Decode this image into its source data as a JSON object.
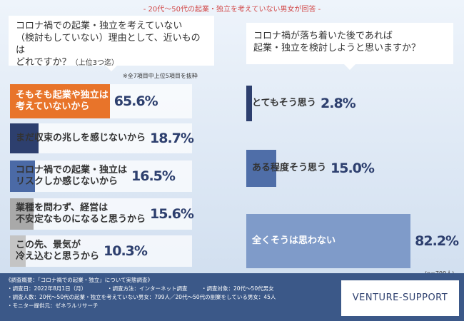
{
  "header": "- 20代～50代の起業・独立を考えていない男女が回答 -",
  "chart_data": [
    {
      "type": "bar",
      "orientation": "horizontal",
      "title": "コロナ禍での起業・独立を考えていない\n（検討もしていない）理由として、近いものは\nどれですか？",
      "title_note": "（上位3つ迄）",
      "note": "※全7項目中上位5項目を抜粋",
      "categories": [
        "そもそも起業や独立は\n考えていないから",
        "まだ収束の兆しを感じないから",
        "コロナ禍での起業・独立は\nリスクしか感じないから",
        "業種を問わず、経営は\n不安定なものになると思うから",
        "この先、景気が\n冷え込むと思うから"
      ],
      "values": [
        65.6,
        18.7,
        16.5,
        15.6,
        10.3
      ],
      "value_labels": [
        "65.6%",
        "18.7%",
        "16.5%",
        "15.6%",
        "10.3%"
      ],
      "colors": [
        "#e8742a",
        "#2d3f6e",
        "#4b6aa6",
        "#a9a9a9",
        "#c4c4c4"
      ]
    },
    {
      "type": "bar",
      "orientation": "horizontal",
      "title": "コロナ禍が落ち着いた後であれば\n起業・独立を検討しようと思いますか？",
      "note": "(n=799人)",
      "categories": [
        "とてもそう思う",
        "ある程度そう思う",
        "全くそうは思わない"
      ],
      "values": [
        2.8,
        15.0,
        82.2
      ],
      "value_labels": [
        "2.8%",
        "15.0%",
        "82.2%"
      ],
      "colors": [
        "#2d3f6e",
        "#4f6ea8",
        "#7f9bc9"
      ]
    }
  ],
  "survey": {
    "title": "《調査概要：「コロナ禍での起業・独立」について実態調査》",
    "items": [
      "・調査日：2022年8月1日（月）",
      "・調査方法：インターネット調査",
      "・調査対象：20代～50代男女",
      "・調査人数：20代～50代の起業・独立を考えていない男女：799人／20代～50代の副業をしている男女：45人",
      "・モニター提供元：ゼネラルリサーチ"
    ]
  },
  "logo": "VENTURE-SUPPORT"
}
